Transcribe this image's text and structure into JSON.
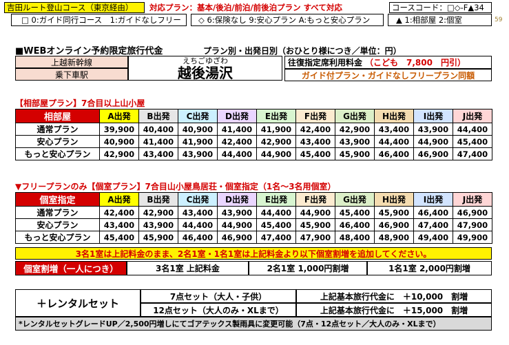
{
  "header": {
    "route": "吉田ルート登山コース（東京経由）",
    "plans": "対応プラン：基本/後泊/前泊/前後泊プラン すべて対応",
    "course_code": "コースコード：□◇-F▲34",
    "page_number": "59",
    "legend1": "□ 0:ガイド同行コース　1:ガイドなしフリー",
    "legend2": "◇ 6:保険なし 9:安心プラン A:もっと安心プラン",
    "legend3": "▲ 1:相部屋 2:個室"
  },
  "title": {
    "main": "■WEBオンライン予約限定旅行代金",
    "sub": "プラン別・出発日別（おひとり様につき／単位：円）",
    "line": "上越新幹線",
    "station_label": "乗下車駅",
    "station_reading": "えちごゆざわ",
    "station_name": "越後湯沢",
    "fare_label": "往復指定席利用料金",
    "fare_value": "（こども　7,800　円引）",
    "guide_note": "ガイド付プラン・ガイドなしフリープラン同額"
  },
  "section1": {
    "title": "【相部屋プラン】7合目以上山小屋",
    "corner": "相部屋",
    "columns": [
      "A出発",
      "B出発",
      "C出発",
      "D出発",
      "E出発",
      "F出発",
      "G出発",
      "H出発",
      "I出発",
      "J出発"
    ],
    "rows": [
      {
        "label": "通常プラン",
        "values": [
          "39,900",
          "40,400",
          "40,900",
          "41,400",
          "41,900",
          "42,400",
          "42,900",
          "43,400",
          "43,900",
          "44,400"
        ]
      },
      {
        "label": "安心プラン",
        "values": [
          "40,900",
          "41,400",
          "41,900",
          "42,400",
          "42,900",
          "43,400",
          "43,900",
          "44,400",
          "44,900",
          "45,400"
        ]
      },
      {
        "label": "もっと安心プラン",
        "values": [
          "42,900",
          "43,400",
          "43,900",
          "44,400",
          "44,900",
          "45,400",
          "45,900",
          "46,400",
          "46,900",
          "47,400"
        ]
      }
    ]
  },
  "section2": {
    "title": "▼フリープランのみ【個室プラン】7合目山小屋鳥居荘・個室指定（1名～3名用個室）",
    "corner": "個室指定",
    "columns": [
      "A出発",
      "B出発",
      "C出発",
      "D出発",
      "E出発",
      "F出発",
      "G出発",
      "H出発",
      "I出発",
      "J出発"
    ],
    "rows": [
      {
        "label": "通常プラン",
        "values": [
          "42,400",
          "42,900",
          "43,400",
          "43,900",
          "44,400",
          "44,900",
          "45,400",
          "45,900",
          "46,400",
          "46,900"
        ]
      },
      {
        "label": "安心プラン",
        "values": [
          "43,400",
          "43,900",
          "44,400",
          "44,900",
          "45,400",
          "45,900",
          "46,400",
          "46,900",
          "47,400",
          "47,900"
        ]
      },
      {
        "label": "もっと安心プラン",
        "values": [
          "45,400",
          "45,900",
          "46,400",
          "46,900",
          "47,400",
          "47,900",
          "48,400",
          "48,900",
          "49,400",
          "49,900"
        ]
      }
    ],
    "note": "3名1室は上記料金のまま、2名1室・1名1室は上記料金より以下個室割増を追加してください。",
    "surcharge_label": "個室割増（一人につき）",
    "surcharge_3": "3名1室 上記料金",
    "surcharge_2": "2名1室 1,000円割増",
    "surcharge_1": "1名1室 2,000円割増"
  },
  "rental": {
    "label": "＋レンタルセット",
    "set7": "7点セット（大人・子供）",
    "set7_price": "上記基本旅行代金に　＋10,000　割増",
    "set12": "12点セット（大人のみ・XLまで）",
    "set12_price": "上記基本旅行代金に　＋15,000　割増",
    "note": "*レンタルセットグレードUP／2,500円増しにてゴアテックス製雨具に変更可能（7点・12点セット／大人のみ・XLまで）"
  },
  "colors": {
    "accent_red": "#d40000",
    "col_colors": [
      "#ffff00",
      "#e6e6e6",
      "#ccf0ff",
      "#ead6ff",
      "#d8f5d0",
      "#fcebd0",
      "#dcefc8",
      "#f4dcb0",
      "#d2e4ff",
      "#ffd6d6"
    ]
  }
}
